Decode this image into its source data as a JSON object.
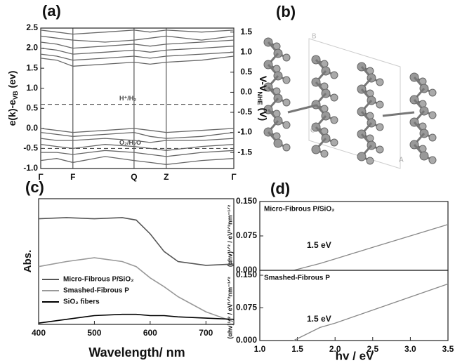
{
  "chart_data": [
    {
      "type": "line",
      "label": "(a)",
      "ylabel": {
        "text": "e(k)-e",
        "sub": "VB",
        "tail": " (ev)"
      },
      "y2label": {
        "text": "V-V",
        "sub": "NHE",
        "tail": " (V)"
      },
      "xlim": [
        0,
        3.0
      ],
      "xticks": [
        {
          "value": 0,
          "label": "Γ"
        },
        {
          "value": 0.5,
          "label": "F"
        },
        {
          "value": 1.45,
          "label": "Q"
        },
        {
          "value": 1.95,
          "label": "Z"
        },
        {
          "value": 3.0,
          "label": "Γ"
        }
      ],
      "xgrid": true,
      "ylim": [
        -1.0,
        2.5
      ],
      "yticks": [
        {
          "value": -1,
          "label": "-1.0"
        },
        -0.5,
        {
          "value": 0,
          "label": "0.0"
        },
        0.5,
        {
          "value": 1,
          "label": "1.0"
        },
        1.5,
        {
          "value": 2,
          "label": "2.0"
        },
        2.5
      ],
      "y2lim": [
        -1.9,
        1.6
      ],
      "y2ticks": [
        -1.5,
        {
          "value": -1,
          "label": "-1.0"
        },
        -0.5,
        {
          "value": 0,
          "label": "0.0"
        },
        0.5,
        {
          "value": 1,
          "label": "1.0"
        },
        1.5
      ],
      "hlines": [
        {
          "value": 0.6,
          "label": "H⁺/H₂"
        },
        {
          "value": -0.5,
          "label": "O₂/H₂O"
        }
      ],
      "line_color": "#666",
      "x": [
        0,
        0.25,
        0.5,
        1.0,
        1.45,
        1.7,
        1.95,
        2.5,
        3.0
      ],
      "series": [
        {
          "values": [
            2.45,
            2.4,
            2.35,
            2.4,
            2.45,
            2.4,
            2.45,
            2.4,
            2.45
          ]
        },
        {
          "values": [
            2.3,
            2.25,
            2.2,
            2.15,
            2.2,
            2.25,
            2.3,
            2.2,
            2.3
          ]
        },
        {
          "values": [
            2.15,
            2.1,
            2.0,
            2.05,
            2.1,
            2.05,
            2.1,
            2.15,
            2.2
          ]
        },
        {
          "values": [
            2.0,
            1.95,
            1.85,
            1.9,
            1.95,
            1.9,
            1.95,
            2.0,
            2.05
          ]
        },
        {
          "values": [
            1.85,
            1.8,
            1.7,
            1.75,
            1.8,
            1.75,
            1.8,
            1.85,
            1.9
          ]
        },
        {
          "values": [
            1.75,
            1.7,
            1.55,
            1.6,
            1.65,
            1.6,
            1.65,
            1.7,
            1.8
          ]
        },
        {
          "values": [
            0.0,
            -0.05,
            -0.1,
            -0.05,
            0.0,
            -0.05,
            -0.1,
            -0.05,
            0.0
          ]
        },
        {
          "values": [
            -0.1,
            -0.15,
            -0.2,
            -0.15,
            -0.1,
            -0.2,
            -0.25,
            -0.2,
            -0.1
          ]
        },
        {
          "values": [
            -0.25,
            -0.3,
            -0.3,
            -0.25,
            -0.3,
            -0.35,
            -0.3,
            -0.3,
            -0.25
          ]
        },
        {
          "values": [
            -0.4,
            -0.45,
            -0.5,
            -0.4,
            -0.45,
            -0.5,
            -0.55,
            -0.45,
            -0.4
          ]
        },
        {
          "values": [
            -0.6,
            -0.6,
            -0.65,
            -0.55,
            -0.6,
            -0.65,
            -0.7,
            -0.6,
            -0.55
          ]
        },
        {
          "values": [
            -0.8,
            -0.75,
            -0.85,
            -0.7,
            -0.8,
            -0.85,
            -0.9,
            -0.8,
            -0.75
          ]
        }
      ]
    },
    {
      "type": "line",
      "label": "(c)",
      "xlabel": "Wavelength/ nm",
      "ylabel": "Abs.",
      "xlim": [
        400,
        750
      ],
      "xticks": [
        400,
        500,
        600,
        700
      ],
      "ylim": [
        0,
        1
      ],
      "x": [
        400,
        450,
        500,
        550,
        575,
        600,
        625,
        650,
        700,
        750
      ],
      "series": [
        {
          "name": "Micro-Fibrous P/SiO₂",
          "color": "#555555",
          "values": [
            0.84,
            0.85,
            0.84,
            0.85,
            0.83,
            0.72,
            0.58,
            0.5,
            0.47,
            0.48
          ]
        },
        {
          "name": "Smashed-Fibrous P",
          "color": "#999999",
          "values": [
            0.46,
            0.5,
            0.53,
            0.5,
            0.46,
            0.37,
            0.3,
            0.22,
            0.1,
            0.02
          ]
        },
        {
          "name": "SiO₂ fibers",
          "color": "#000000",
          "values": [
            0.01,
            0.04,
            0.07,
            0.08,
            0.08,
            0.07,
            0.07,
            0.06,
            0.05,
            0.04
          ]
        }
      ]
    },
    {
      "type": "line",
      "label": "(d)",
      "title": "Micro-Fibrous P/SiO₂",
      "annotation": "1.5 eV",
      "ylabel": "(αhv)¹ᐟ² / eV¹ᐟ²nm⁻¹ᐟ²",
      "xlim": [
        1.0,
        3.5
      ],
      "ylim": [
        0,
        0.15
      ],
      "yticks": [
        {
          "value": 0,
          "label": "0.000"
        },
        0.075,
        {
          "value": 0.15,
          "label": "0.150"
        }
      ],
      "x": [
        1.45,
        1.8,
        2.0,
        2.5,
        3.0,
        3.5
      ],
      "series": [
        {
          "color": "#888888",
          "values": [
            0,
            0.015,
            0.025,
            0.05,
            0.075,
            0.1
          ]
        }
      ]
    },
    {
      "type": "line",
      "title": "Smashed-Fibrous P",
      "annotation": "1.5 eV",
      "xlabel": "hv / eV",
      "ylabel": "(αhv)¹ᐟ² / eV¹ᐟ²nm⁻¹ᐟ²",
      "xlim": [
        1.0,
        3.5
      ],
      "xticks": [
        {
          "value": 1,
          "label": "1.0"
        },
        1.5,
        {
          "value": 2,
          "label": "2.0"
        },
        2.5,
        {
          "value": 3,
          "label": "3.0"
        },
        3.5
      ],
      "ylim": [
        0,
        0.15
      ],
      "yticks": [
        {
          "value": 0,
          "label": "0.000"
        },
        0.075,
        {
          "value": 0.15,
          "label": "0.150"
        }
      ],
      "x": [
        1.45,
        1.8,
        2.0,
        2.5,
        3.0,
        3.5
      ],
      "series": [
        {
          "color": "#888888",
          "values": [
            0,
            0.03,
            0.04,
            0.07,
            0.1,
            0.13
          ]
        }
      ]
    }
  ],
  "structure": {
    "label": "(b)",
    "axes": [
      "B",
      "C",
      "A"
    ]
  }
}
